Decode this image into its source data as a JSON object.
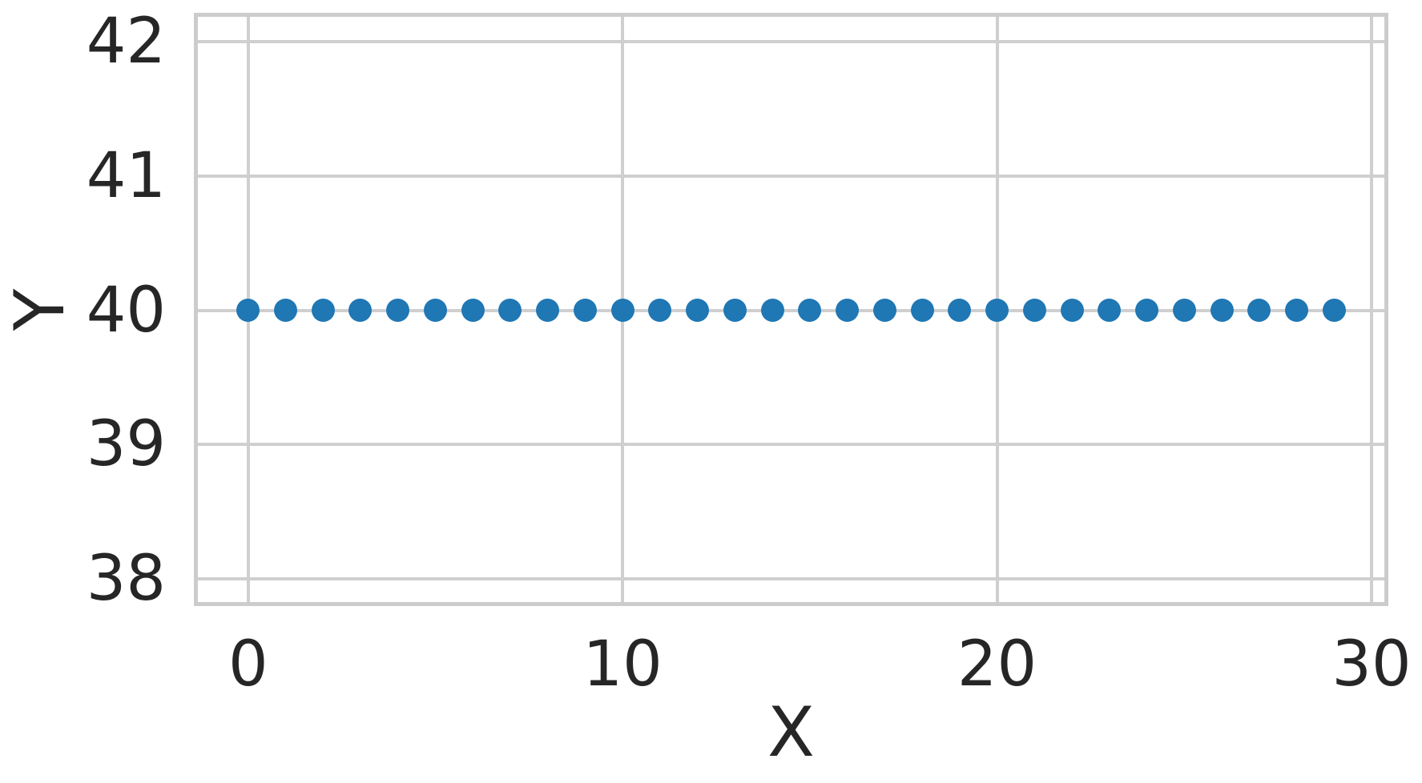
{
  "chart_data": {
    "type": "scatter",
    "title": "",
    "xlabel": "X",
    "ylabel": "Y",
    "x": [
      0,
      1,
      2,
      3,
      4,
      5,
      6,
      7,
      8,
      9,
      10,
      11,
      12,
      13,
      14,
      15,
      16,
      17,
      18,
      19,
      20,
      21,
      22,
      23,
      24,
      25,
      26,
      27,
      28,
      29
    ],
    "y": [
      40,
      40,
      40,
      40,
      40,
      40,
      40,
      40,
      40,
      40,
      40,
      40,
      40,
      40,
      40,
      40,
      40,
      40,
      40,
      40,
      40,
      40,
      40,
      40,
      40,
      40,
      40,
      40,
      40,
      40
    ],
    "xticks": [
      0,
      10,
      20,
      30
    ],
    "yticks": [
      38,
      39,
      40,
      41,
      42
    ],
    "xlim": [
      -1.45,
      30.45
    ],
    "ylim": [
      37.797,
      42.215
    ],
    "grid": true,
    "legend": false,
    "marker_color": "#1f77b4",
    "marker_diameter_px": 29,
    "grid_color": "#cfcfcf",
    "spine_color": "#cccccc",
    "text_color": "#262626",
    "background_color": "#ffffff"
  }
}
